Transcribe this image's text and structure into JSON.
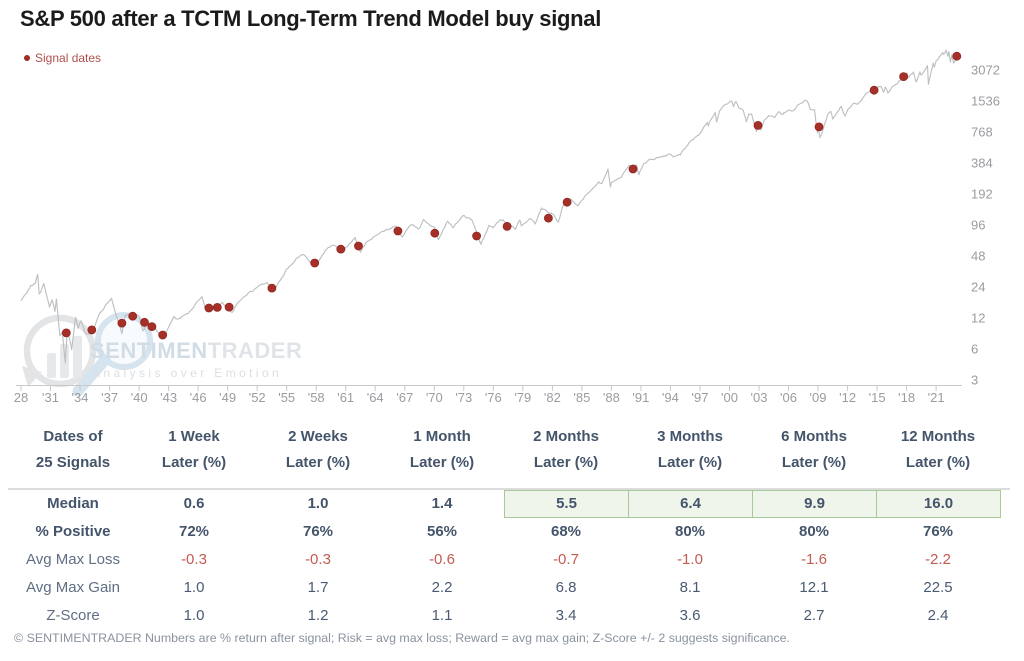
{
  "header": {
    "title": "S&P 500 after a TCTM Long-Term Trend Model buy signal",
    "legend_label": "Signal dates"
  },
  "watermark": {
    "brand_bold": "SENTIMEN",
    "brand_light": "TRADER",
    "tagline": "Analysis over Emotion"
  },
  "chart_data": {
    "type": "line",
    "title": "S&P 500 after a TCTM Long-Term Trend Model buy signal",
    "xlabel": "",
    "ylabel": "",
    "y_scale": "log2",
    "grid": false,
    "legend_position": "top-left",
    "y_ticks": [
      3072,
      1536,
      768,
      384,
      192,
      96,
      48,
      24,
      12,
      6,
      3
    ],
    "x_tick_labels": [
      "28",
      "'31",
      "'34",
      "'37",
      "'40",
      "'43",
      "'46",
      "'49",
      "'52",
      "'55",
      "'58",
      "'61",
      "'64",
      "'67",
      "'70",
      "'73",
      "'76",
      "'79",
      "'82",
      "'85",
      "'88",
      "'91",
      "'94",
      "'97",
      "'00",
      "'03",
      "'06",
      "'09",
      "'12",
      "'15",
      "'18",
      "'21"
    ],
    "x_tick_years": [
      1928,
      1931,
      1934,
      1937,
      1940,
      1943,
      1946,
      1949,
      1952,
      1955,
      1958,
      1961,
      1964,
      1967,
      1970,
      1973,
      1976,
      1979,
      1982,
      1985,
      1988,
      1991,
      1994,
      1997,
      2000,
      2003,
      2006,
      2009,
      2012,
      2015,
      2018,
      2021
    ],
    "series": [
      {
        "name": "S&P 500",
        "points": [
          [
            1928,
            17.7
          ],
          [
            1928.6,
            21.0
          ],
          [
            1929,
            24.9
          ],
          [
            1929.45,
            26.0
          ],
          [
            1929.7,
            31.9
          ],
          [
            1929.85,
            20.5
          ],
          [
            1930,
            21.4
          ],
          [
            1930.3,
            25.9
          ],
          [
            1930.9,
            15.3
          ],
          [
            1931.15,
            18.0
          ],
          [
            1931.45,
            13.9
          ],
          [
            1931.6,
            18.3
          ],
          [
            1931.95,
            8.1
          ],
          [
            1932.2,
            8.8
          ],
          [
            1932.5,
            4.4
          ],
          [
            1932.7,
            9.3
          ],
          [
            1933,
            7.1
          ],
          [
            1933.15,
            5.9
          ],
          [
            1933.55,
            12.2
          ],
          [
            1933.8,
            9.5
          ],
          [
            1934.1,
            11.3
          ],
          [
            1934.55,
            8.6
          ],
          [
            1935.2,
            8.4
          ],
          [
            1936,
            13.4
          ],
          [
            1936.9,
            17.2
          ],
          [
            1937.2,
            18.7
          ],
          [
            1937.95,
            10.6
          ],
          [
            1938.25,
            8.5
          ],
          [
            1938.6,
            12.8
          ],
          [
            1938.9,
            13.1
          ],
          [
            1939.3,
            12.0
          ],
          [
            1939.7,
            13.0
          ],
          [
            1940.0,
            12.5
          ],
          [
            1940.4,
            9.0
          ],
          [
            1940.8,
            10.8
          ],
          [
            1941.5,
            10.0
          ],
          [
            1941.95,
            8.7
          ],
          [
            1942.3,
            7.5
          ],
          [
            1943.0,
            9.8
          ],
          [
            1943.55,
            12.4
          ],
          [
            1944.0,
            11.7
          ],
          [
            1945.0,
            13.3
          ],
          [
            1945.95,
            17.4
          ],
          [
            1946.4,
            19.3
          ],
          [
            1946.75,
            14.7
          ],
          [
            1947.4,
            14.3
          ],
          [
            1948.0,
            15.3
          ],
          [
            1948.45,
            17.1
          ],
          [
            1949.45,
            13.6
          ],
          [
            1950.0,
            16.8
          ],
          [
            1951.0,
            20.4
          ],
          [
            1952.0,
            23.8
          ],
          [
            1953.0,
            26.6
          ],
          [
            1953.7,
            22.7
          ],
          [
            1954.0,
            24.8
          ],
          [
            1955.0,
            36.0
          ],
          [
            1956.0,
            45.5
          ],
          [
            1956.6,
            49.7
          ],
          [
            1957.0,
            46.7
          ],
          [
            1957.8,
            39.0
          ],
          [
            1958.0,
            40.3
          ],
          [
            1959.0,
            55.2
          ],
          [
            1959.6,
            60.7
          ],
          [
            1960.0,
            59.9
          ],
          [
            1960.8,
            52.3
          ],
          [
            1961.0,
            58.1
          ],
          [
            1961.95,
            72.6
          ],
          [
            1962.5,
            52.3
          ],
          [
            1963.0,
            63.1
          ],
          [
            1964.0,
            75.0
          ],
          [
            1965.0,
            84.8
          ],
          [
            1966.1,
            94.1
          ],
          [
            1966.75,
            73.2
          ],
          [
            1967.0,
            80.3
          ],
          [
            1967.7,
            97.6
          ],
          [
            1968.4,
            87.7
          ],
          [
            1968.9,
            108.4
          ],
          [
            1969.5,
            97.0
          ],
          [
            1970.0,
            92.1
          ],
          [
            1970.4,
            69.3
          ],
          [
            1971.35,
            104.8
          ],
          [
            1971.9,
            90.2
          ],
          [
            1972.95,
            119.1
          ],
          [
            1973.8,
            108.0
          ],
          [
            1974.0,
            97.6
          ],
          [
            1974.75,
            62.3
          ],
          [
            1975.55,
            95.2
          ],
          [
            1976.0,
            90.2
          ],
          [
            1976.75,
            107.8
          ],
          [
            1977.0,
            107.5
          ],
          [
            1978.2,
            86.9
          ],
          [
            1978.7,
            107.0
          ],
          [
            1978.85,
            94.0
          ],
          [
            1979.75,
            111.3
          ],
          [
            1980.25,
            98.2
          ],
          [
            1980.9,
            140.5
          ],
          [
            1981.0,
            135.8
          ],
          [
            1982.0,
            122.6
          ],
          [
            1982.6,
            102.4
          ],
          [
            1983.0,
            140.6
          ],
          [
            1983.8,
            172.7
          ],
          [
            1984.0,
            164.9
          ],
          [
            1984.55,
            147.8
          ],
          [
            1985.0,
            167.2
          ],
          [
            1986.0,
            211.3
          ],
          [
            1986.7,
            252.8
          ],
          [
            1987.0,
            242.2
          ],
          [
            1987.65,
            336.8
          ],
          [
            1987.9,
            223.9
          ],
          [
            1988.0,
            247.1
          ],
          [
            1989.0,
            277.7
          ],
          [
            1989.75,
            359.8
          ],
          [
            1990.0,
            353.4
          ],
          [
            1990.55,
            368.0
          ],
          [
            1990.8,
            295.5
          ],
          [
            1991.0,
            330.2
          ],
          [
            1991.3,
            380.0
          ],
          [
            1992.0,
            417.1
          ],
          [
            1993.0,
            435.7
          ],
          [
            1994.0,
            466.4
          ],
          [
            1994.3,
            438.9
          ],
          [
            1995.0,
            459.3
          ],
          [
            1996.0,
            615.9
          ],
          [
            1997.0,
            740.7
          ],
          [
            1997.75,
            954.0
          ],
          [
            1997.85,
            876.0
          ],
          [
            1998.0,
            970.4
          ],
          [
            1998.55,
            1186.8
          ],
          [
            1998.7,
            957.3
          ],
          [
            1999.0,
            1229.2
          ],
          [
            1999.55,
            1418.8
          ],
          [
            2000.25,
            1527.5
          ],
          [
            2000.4,
            1356.6
          ],
          [
            2000.65,
            1520.8
          ],
          [
            2000.95,
            1314.0
          ],
          [
            2001.4,
            1249.5
          ],
          [
            2001.72,
            965.8
          ],
          [
            2001.95,
            1148.1
          ],
          [
            2002.25,
            1147.4
          ],
          [
            2002.75,
            776.8
          ],
          [
            2002.9,
            936.3
          ],
          [
            2003.2,
            800.7
          ],
          [
            2003.5,
            987.8
          ],
          [
            2004.0,
            1111.9
          ],
          [
            2004.6,
            1063.2
          ],
          [
            2005.0,
            1211.9
          ],
          [
            2005.3,
            1137.5
          ],
          [
            2006.0,
            1248.3
          ],
          [
            2006.5,
            1236.2
          ],
          [
            2007.0,
            1418.3
          ],
          [
            2007.75,
            1565.2
          ],
          [
            2008.0,
            1468.4
          ],
          [
            2008.2,
            1273.4
          ],
          [
            2008.65,
            1255.1
          ],
          [
            2008.85,
            848.9
          ],
          [
            2008.95,
            752.4
          ],
          [
            2009.0,
            903.3
          ],
          [
            2009.2,
            676.5
          ],
          [
            2009.95,
            1115.1
          ],
          [
            2010.3,
            1217.3
          ],
          [
            2010.5,
            1022.6
          ],
          [
            2011.35,
            1363.6
          ],
          [
            2011.75,
            1099.2
          ],
          [
            2012.0,
            1257.6
          ],
          [
            2012.7,
            1465.8
          ],
          [
            2013.0,
            1426.2
          ],
          [
            2014.0,
            1848.4
          ],
          [
            2015.0,
            2058.9
          ],
          [
            2015.4,
            2130.8
          ],
          [
            2015.65,
            1867.6
          ],
          [
            2015.85,
            2099.2
          ],
          [
            2016.1,
            1829.1
          ],
          [
            2016.5,
            2098.9
          ],
          [
            2017.0,
            2238.8
          ],
          [
            2018.05,
            2872.9
          ],
          [
            2018.15,
            2581.0
          ],
          [
            2018.7,
            2930.8
          ],
          [
            2018.98,
            2351.1
          ],
          [
            2019.35,
            2945.8
          ],
          [
            2019.45,
            2744.5
          ],
          [
            2020.0,
            3230.8
          ],
          [
            2020.12,
            3386.2
          ],
          [
            2020.22,
            2237.4
          ],
          [
            2020.7,
            3580.8
          ],
          [
            2020.8,
            3269.9
          ],
          [
            2021.0,
            3756.1
          ],
          [
            2021.35,
            4181.2
          ],
          [
            2021.7,
            4536.9
          ],
          [
            2021.75,
            4357.0
          ],
          [
            2022.0,
            4796.6
          ],
          [
            2022.2,
            4170.7
          ],
          [
            2022.3,
            4631.6
          ],
          [
            2022.45,
            3666.8
          ],
          [
            2022.6,
            4305.2
          ],
          [
            2022.78,
            3577.0
          ],
          [
            2023.0,
            3839.5
          ],
          [
            2023.1,
            4179.8
          ],
          [
            2023.15,
            3970.0
          ],
          [
            2023.25,
            4109.3
          ]
        ]
      }
    ],
    "signals": {
      "name": "Signal dates",
      "points": [
        [
          1932.6,
          8.6
        ],
        [
          1935.2,
          9.2
        ],
        [
          1938.25,
          10.7
        ],
        [
          1939.35,
          12.5
        ],
        [
          1940.55,
          10.9
        ],
        [
          1941.3,
          9.9
        ],
        [
          1942.4,
          8.2
        ],
        [
          1947.1,
          15.0
        ],
        [
          1947.95,
          15.2
        ],
        [
          1949.15,
          15.3
        ],
        [
          1953.5,
          23.4
        ],
        [
          1957.85,
          41.0
        ],
        [
          1960.5,
          56.0
        ],
        [
          1962.3,
          60.0
        ],
        [
          1966.3,
          84.0
        ],
        [
          1970.05,
          80.0
        ],
        [
          1974.3,
          75.0
        ],
        [
          1977.4,
          93.0
        ],
        [
          1981.6,
          112.0
        ],
        [
          1983.5,
          160.0
        ],
        [
          1990.2,
          336.0
        ],
        [
          2002.9,
          890.0
        ],
        [
          2009.1,
          860.0
        ],
        [
          2014.7,
          1955.0
        ],
        [
          2017.7,
          2650.0
        ],
        [
          2023.1,
          4180.0
        ]
      ]
    },
    "colors": {
      "line": "#bdc0c3",
      "signal": "#a63028",
      "signal_edge": "#8f2620",
      "axis": "#c9c9c9",
      "tick_label": "#9a9ca0",
      "highlight_bg": "#eff5ea",
      "highlight_border": "#a9c999",
      "negative": "#c25b52",
      "table_text": "#44546a"
    }
  },
  "table": {
    "col_headers": [
      [
        "Dates of",
        "25 Signals"
      ],
      [
        "1 Week",
        "Later (%)"
      ],
      [
        "2 Weeks",
        "Later (%)"
      ],
      [
        "1 Month",
        "Later (%)"
      ],
      [
        "2 Months",
        "Later (%)"
      ],
      [
        "3 Months",
        "Later (%)"
      ],
      [
        "6 Months",
        "Later (%)"
      ],
      [
        "12 Months",
        "Later (%)"
      ]
    ],
    "rows": [
      {
        "label": "Median",
        "style": "bold",
        "highlight_from": 3,
        "values": [
          "0.6",
          "1.0",
          "1.4",
          "5.5",
          "6.4",
          "9.9",
          "16.0"
        ]
      },
      {
        "label": "% Positive",
        "style": "bold",
        "values": [
          "72%",
          "76%",
          "56%",
          "68%",
          "80%",
          "80%",
          "76%"
        ]
      },
      {
        "label": "Avg Max Loss",
        "style": "red",
        "values": [
          "-0.3",
          "-0.3",
          "-0.6",
          "-0.7",
          "-1.0",
          "-1.6",
          "-2.2"
        ]
      },
      {
        "label": "Avg Max Gain",
        "style": "plain",
        "values": [
          "1.0",
          "1.7",
          "2.2",
          "6.8",
          "8.1",
          "12.1",
          "22.5"
        ]
      },
      {
        "label": "Z-Score",
        "style": "plain",
        "values": [
          "1.0",
          "1.2",
          "1.1",
          "3.4",
          "3.6",
          "2.7",
          "2.4"
        ]
      }
    ]
  },
  "footer": {
    "text": "© SENTIMENTRADER  Numbers are % return after signal; Risk = avg max loss; Reward = avg max gain; Z-Score +/- 2 suggests significance."
  }
}
